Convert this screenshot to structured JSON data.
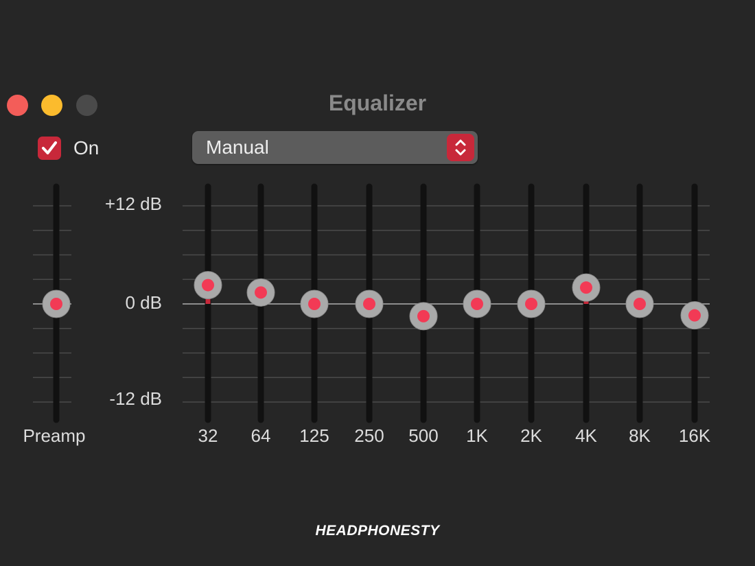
{
  "window": {
    "title": "Equalizer",
    "controls": [
      "close",
      "minimize",
      "zoom"
    ]
  },
  "toggle": {
    "label": "On",
    "checked": true
  },
  "preset": {
    "selected": "Manual"
  },
  "scale": {
    "max_label": "+12 dB",
    "mid_label": "0 dB",
    "min_label": "-12 dB",
    "max_db": 12,
    "min_db": -12
  },
  "preamp": {
    "label": "Preamp",
    "value_db": 0
  },
  "bands": [
    {
      "label": "32",
      "value_db": 2.3
    },
    {
      "label": "64",
      "value_db": 1.4
    },
    {
      "label": "125",
      "value_db": 0
    },
    {
      "label": "250",
      "value_db": 0
    },
    {
      "label": "500",
      "value_db": -1.5
    },
    {
      "label": "1K",
      "value_db": 0
    },
    {
      "label": "2K",
      "value_db": 0
    },
    {
      "label": "4K",
      "value_db": 2.0
    },
    {
      "label": "8K",
      "value_db": 0
    },
    {
      "label": "16K",
      "value_db": -1.4
    }
  ],
  "colors": {
    "background": "#262626",
    "accent": "#c8283a",
    "knob_ring": "#a9a9a9",
    "knob_dot": "#f23a55",
    "track": "#111111",
    "gridline": "#4a4a4a",
    "zero_line": "#8e8e8e"
  },
  "icons": {
    "checkbox": "checkmark-icon",
    "stepper": "chevron-up-down-icon"
  },
  "watermark": "HEADPHONESTY"
}
